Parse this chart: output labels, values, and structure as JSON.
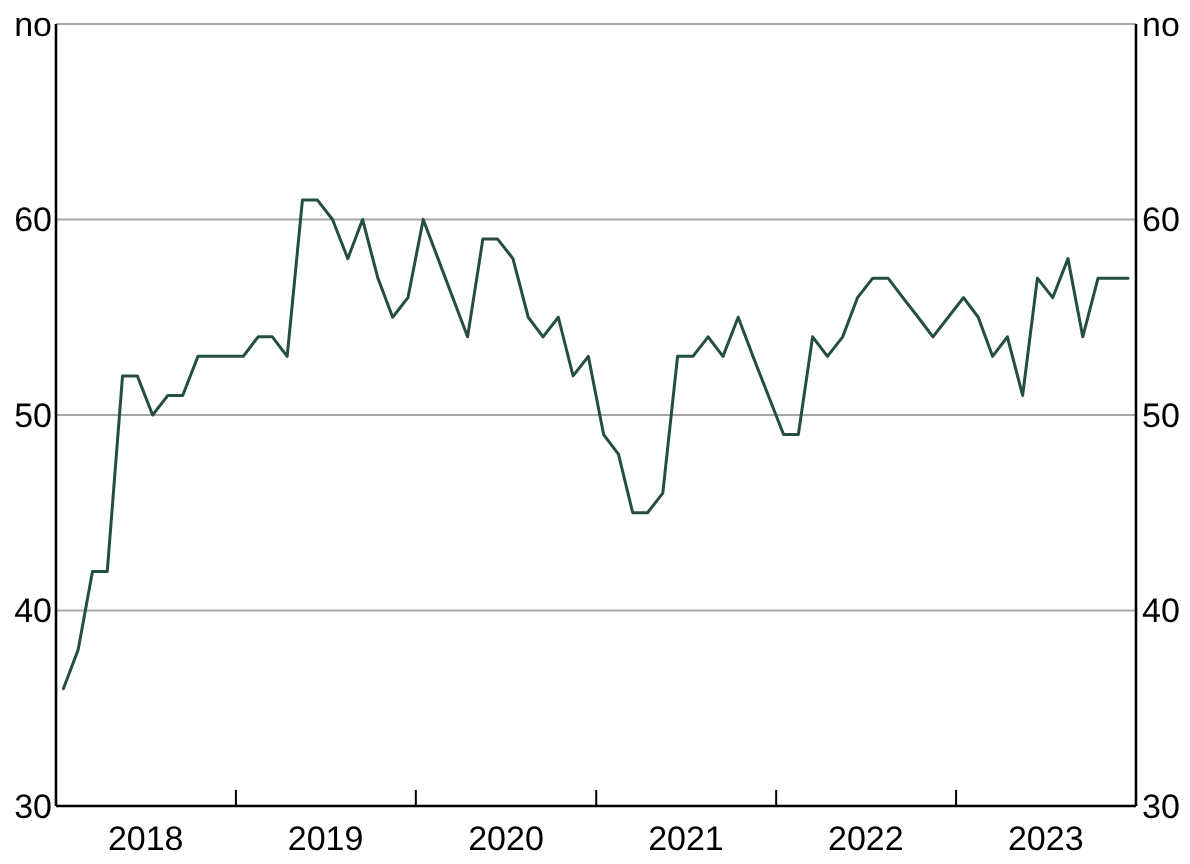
{
  "chart_data": {
    "type": "line",
    "x": [
      "2018-01-16",
      "2018-02-15",
      "2018-03-16",
      "2018-04-15",
      "2018-05-16",
      "2018-06-15",
      "2018-07-16",
      "2018-08-16",
      "2018-09-15",
      "2018-10-16",
      "2018-11-15",
      "2018-12-16",
      "2019-01-16",
      "2019-02-15",
      "2019-03-16",
      "2019-04-15",
      "2019-05-16",
      "2019-06-15",
      "2019-07-16",
      "2019-08-16",
      "2019-09-15",
      "2019-10-16",
      "2019-11-15",
      "2019-12-16",
      "2020-01-16",
      "2020-02-15",
      "2020-03-16",
      "2020-04-15",
      "2020-05-16",
      "2020-06-15",
      "2020-07-16",
      "2020-08-16",
      "2020-09-15",
      "2020-10-16",
      "2020-11-15",
      "2020-12-16",
      "2021-01-16",
      "2021-02-15",
      "2021-03-16",
      "2021-04-15",
      "2021-05-16",
      "2021-06-15",
      "2021-07-16",
      "2021-08-16",
      "2021-09-15",
      "2021-10-16",
      "2021-11-15",
      "2021-12-16",
      "2022-01-16",
      "2022-02-15",
      "2022-03-16",
      "2022-04-15",
      "2022-05-16",
      "2022-06-15",
      "2022-07-16",
      "2022-08-16",
      "2022-09-15",
      "2022-10-16",
      "2022-11-15",
      "2022-12-16",
      "2023-01-16",
      "2023-02-15",
      "2023-03-16",
      "2023-04-15",
      "2023-05-16",
      "2023-06-15",
      "2023-07-16",
      "2023-08-16",
      "2023-09-15",
      "2023-10-16",
      "2023-11-15",
      "2023-12-16"
    ],
    "series": [
      {
        "color": "#244f3c",
        "values": [
          36,
          38,
          42,
          42,
          52,
          52,
          50,
          51,
          51,
          53,
          53,
          53,
          53,
          54,
          54,
          53,
          61,
          61,
          60,
          58,
          60,
          57,
          55,
          56,
          60,
          58,
          56,
          54,
          59,
          59,
          58,
          55,
          54,
          55,
          52,
          53,
          49,
          48,
          45,
          45,
          46,
          53,
          53,
          54,
          53,
          55,
          53,
          51,
          49,
          49,
          54,
          53,
          54,
          56,
          57,
          57,
          56,
          55,
          54,
          55,
          56,
          55,
          53,
          54,
          51,
          57,
          56,
          58,
          54,
          57,
          57,
          57
        ]
      }
    ],
    "xlim": [
      "2018-01-01",
      "2024-01-01"
    ],
    "xticks": [
      {
        "value": "2019-01-01",
        "label": null
      },
      {
        "value": "2020-01-01",
        "label": null
      },
      {
        "value": "2021-01-01",
        "label": null
      },
      {
        "value": "2022-01-01",
        "label": null
      },
      {
        "value": "2023-01-01",
        "label": null
      },
      {
        "value": "2018-07-02",
        "label": "2018"
      },
      {
        "value": "2019-07-02",
        "label": "2019"
      },
      {
        "value": "2020-07-02",
        "label": "2020"
      },
      {
        "value": "2021-07-02",
        "label": "2021"
      },
      {
        "value": "2022-07-02",
        "label": "2022"
      },
      {
        "value": "2023-07-02",
        "label": "2023"
      }
    ],
    "ylim": [
      30,
      70
    ],
    "yticks": [
      30,
      40,
      50,
      60,
      {
        "value": 70,
        "label": "no"
      }
    ],
    "y2lim": [
      30,
      70
    ],
    "y2ticks": [
      30,
      40,
      50,
      60,
      {
        "value": 70,
        "label": "no"
      }
    ],
    "grid": "y",
    "marker": "none",
    "line_style": "solid"
  }
}
